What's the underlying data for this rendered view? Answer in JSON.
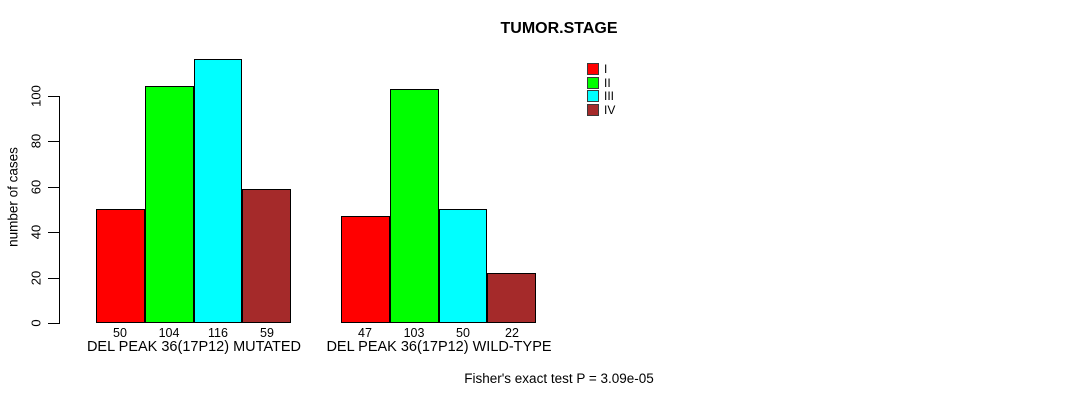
{
  "chart_data": {
    "type": "bar",
    "title": "TUMOR.STAGE",
    "ylabel": "number of cases",
    "xlabel": "",
    "yticks": [
      0,
      20,
      40,
      60,
      80,
      100
    ],
    "ylim": [
      0,
      116
    ],
    "grid": false,
    "legend_position": "top-right",
    "series_labels": [
      "I",
      "II",
      "III",
      "IV"
    ],
    "colors": [
      "#FF0000",
      "#00FF00",
      "#00FFFF",
      "#A52A2A"
    ],
    "legend": [
      {
        "label": "I",
        "color": "#FF0000"
      },
      {
        "label": "II",
        "color": "#00FF00"
      },
      {
        "label": "III",
        "color": "#00FFFF"
      },
      {
        "label": "IV",
        "color": "#A52A2A"
      }
    ],
    "categories": [
      "DEL PEAK 36(17P12) MUTATED",
      "DEL PEAK 36(17P12) WILD-TYPE"
    ],
    "groups": [
      {
        "label": "DEL PEAK 36(17P12) MUTATED",
        "values": [
          50,
          104,
          116,
          59
        ]
      },
      {
        "label": "DEL PEAK 36(17P12) WILD-TYPE",
        "values": [
          47,
          103,
          50,
          22
        ]
      }
    ],
    "bar_value_labels_shown": true,
    "footnote": "Fisher's exact test P = 3.09e-05",
    "text_color": "#000000",
    "background_color": "#FFFFFF"
  }
}
